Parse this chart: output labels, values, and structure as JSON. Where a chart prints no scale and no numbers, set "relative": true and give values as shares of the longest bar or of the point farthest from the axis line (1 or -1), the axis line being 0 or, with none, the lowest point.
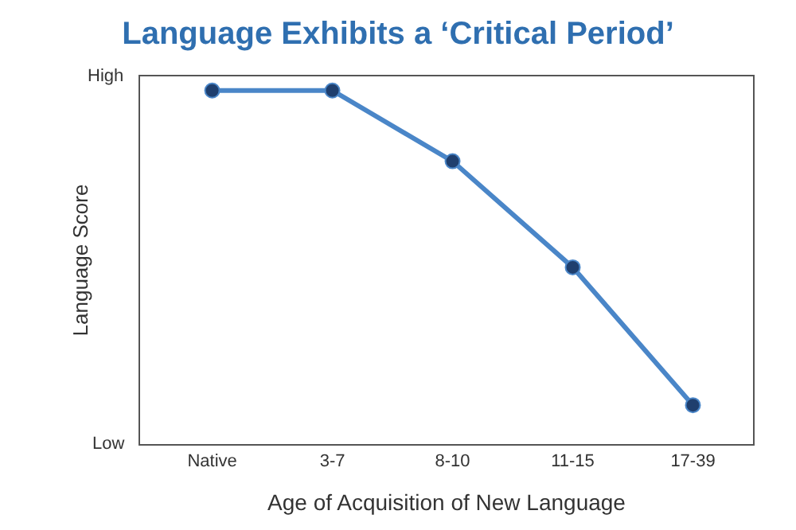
{
  "chart_data": {
    "type": "line",
    "title": "Language Exhibits a ‘Critical Period’",
    "xlabel": "Age of Acquisition of New Language",
    "ylabel": "Language Score",
    "categories": [
      "Native",
      "3-7",
      "8-10",
      "11-15",
      "17-39"
    ],
    "relative": true,
    "series": [
      {
        "color": "#4a86c8",
        "values": [
          1,
          1,
          0.8,
          0.5,
          0.11
        ]
      }
    ],
    "annotations": [
      "High",
      "Low"
    ],
    "marker": "circle",
    "line_style": "solid"
  }
}
